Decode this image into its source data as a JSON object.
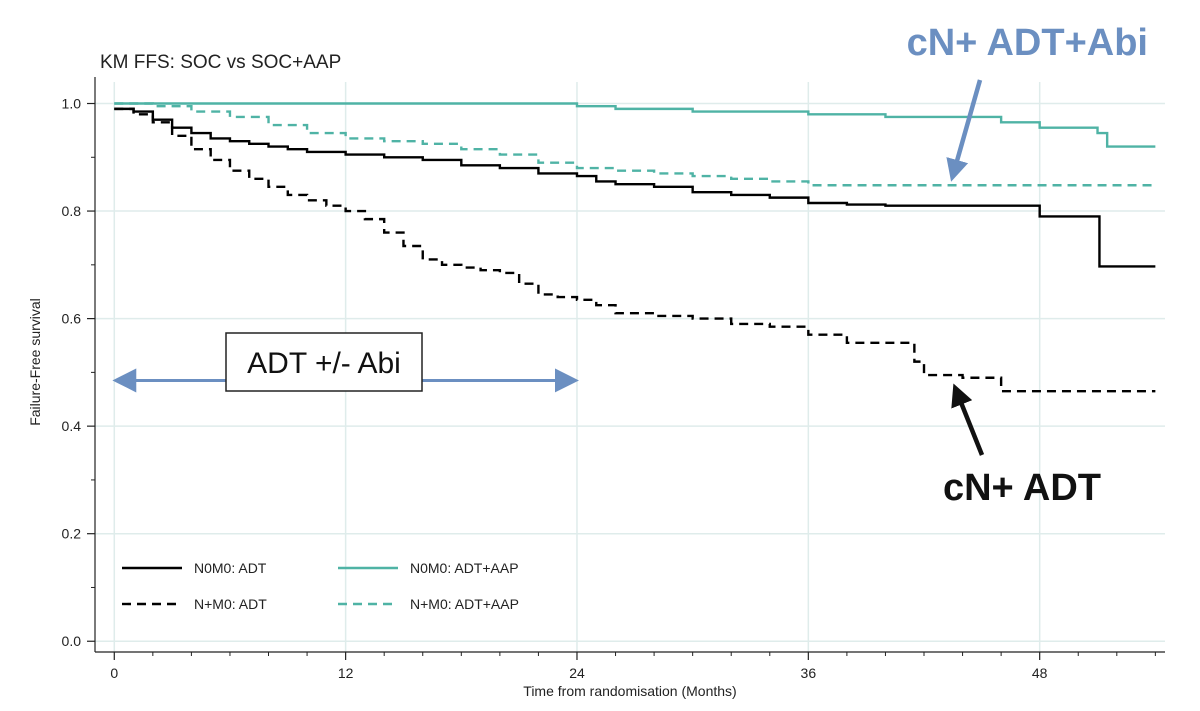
{
  "chart_data": {
    "type": "line",
    "title": "KM FFS: SOC vs SOC+AAP",
    "xlabel": "Time from randomisation (Months)",
    "ylabel": "Failure-Free survival",
    "xlim": [
      -1,
      54.5
    ],
    "ylim": [
      -0.02,
      1.04
    ],
    "xticks": [
      0,
      12,
      24,
      36,
      48
    ],
    "yticks": [
      0.0,
      0.2,
      0.4,
      0.6,
      0.8,
      1.0
    ],
    "ytick_labels": [
      "0.0",
      "0.2",
      "0.4",
      "0.6",
      "0.8",
      "1.0"
    ],
    "grid": true,
    "legend_position": "bottom-left",
    "series": [
      {
        "name": "N0M0: ADT",
        "color": "#000000",
        "dash": "solid",
        "x": [
          0,
          1,
          2,
          3,
          4,
          5,
          6,
          7,
          8,
          9,
          10,
          12,
          14,
          16,
          18,
          20,
          22,
          24,
          25,
          26,
          28,
          30,
          32,
          34,
          36,
          38,
          40,
          42,
          44,
          46,
          48,
          51,
          51.1,
          54
        ],
        "y": [
          0.99,
          0.985,
          0.97,
          0.955,
          0.945,
          0.935,
          0.93,
          0.925,
          0.92,
          0.915,
          0.91,
          0.905,
          0.9,
          0.895,
          0.885,
          0.88,
          0.87,
          0.865,
          0.855,
          0.85,
          0.845,
          0.835,
          0.83,
          0.825,
          0.815,
          0.812,
          0.81,
          0.81,
          0.81,
          0.81,
          0.79,
          0.79,
          0.697,
          0.697
        ]
      },
      {
        "name": "N0M0: ADT+AAP",
        "color": "#4fb3a5",
        "dash": "solid",
        "x": [
          0,
          14,
          24,
          26,
          30,
          36,
          40,
          46,
          48,
          51,
          51.5,
          54
        ],
        "y": [
          1.0,
          1.0,
          0.995,
          0.99,
          0.985,
          0.98,
          0.975,
          0.965,
          0.955,
          0.945,
          0.92,
          0.92
        ],
        "step": true
      },
      {
        "name": "N+M0: ADT",
        "color": "#000000",
        "dash": "dashed",
        "x": [
          0,
          1,
          2,
          3,
          4,
          5,
          6,
          7,
          8,
          9,
          10,
          11,
          12,
          13,
          14,
          15,
          16,
          17,
          18,
          19,
          20,
          21,
          22,
          23,
          24,
          25,
          26,
          28,
          30,
          32,
          34,
          36,
          38,
          40,
          41,
          41.5,
          42,
          44,
          45,
          46,
          48,
          50,
          54
        ],
        "y": [
          0.99,
          0.98,
          0.965,
          0.94,
          0.915,
          0.895,
          0.875,
          0.86,
          0.845,
          0.83,
          0.82,
          0.81,
          0.8,
          0.785,
          0.76,
          0.735,
          0.71,
          0.7,
          0.695,
          0.69,
          0.685,
          0.665,
          0.645,
          0.64,
          0.635,
          0.625,
          0.61,
          0.605,
          0.6,
          0.59,
          0.585,
          0.57,
          0.555,
          0.555,
          0.555,
          0.52,
          0.495,
          0.49,
          0.49,
          0.465,
          0.465,
          0.465,
          0.465
        ]
      },
      {
        "name": "N+M0: ADT+AAP",
        "color": "#4fb3a5",
        "dash": "dashed",
        "x": [
          0,
          2,
          4,
          6,
          8,
          10,
          12,
          14,
          16,
          18,
          20,
          22,
          24,
          26,
          28,
          30,
          32,
          34,
          36,
          38,
          40,
          42,
          44,
          46,
          48,
          50,
          52,
          54
        ],
        "y": [
          1.0,
          0.995,
          0.985,
          0.975,
          0.96,
          0.945,
          0.935,
          0.93,
          0.925,
          0.915,
          0.905,
          0.89,
          0.88,
          0.875,
          0.87,
          0.865,
          0.86,
          0.855,
          0.848,
          0.848,
          0.848,
          0.848,
          0.848,
          0.848,
          0.848,
          0.848,
          0.848,
          0.848
        ]
      }
    ],
    "legend": [
      {
        "label": "N0M0: ADT",
        "color": "#000000",
        "dash": "solid"
      },
      {
        "label": "N0M0: ADT+AAP",
        "color": "#4fb3a5",
        "dash": "solid"
      },
      {
        "label": "N+M0: ADT",
        "color": "#000000",
        "dash": "dashed"
      },
      {
        "label": "N+M0: ADT+AAP",
        "color": "#4fb3a5",
        "dash": "dashed"
      }
    ],
    "annotations": {
      "top_label": "cN+ ADT+Abi",
      "top_label_color": "#6b8fc1",
      "top_arrow_target": [
        43.5,
        0.848
      ],
      "bottom_label": "cN+ ADT",
      "bottom_label_color": "#111111",
      "bottom_arrow_target": [
        43.5,
        0.49
      ],
      "box_label": "ADT +/- Abi",
      "arrow_span": [
        0,
        24
      ],
      "arrow_span_y": 0.485,
      "arrow_color": "#6b8fc1"
    }
  }
}
